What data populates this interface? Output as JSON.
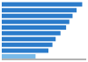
{
  "chart_data": {
    "type": "bar",
    "orientation": "horizontal",
    "categories": [
      null,
      null,
      null,
      null,
      null,
      null,
      null,
      null,
      null,
      null
    ],
    "values": [
      100,
      93,
      88,
      84,
      80,
      73,
      67,
      63,
      58,
      42
    ],
    "colors": [
      "#2b7bca",
      "#2b7bca",
      "#2b7bca",
      "#2b7bca",
      "#2b7bca",
      "#2b7bca",
      "#2b7bca",
      "#2b7bca",
      "#2b7bca",
      "#79bae8"
    ],
    "xlim": [
      0,
      105
    ],
    "grid": false,
    "tick_labels": false
  }
}
